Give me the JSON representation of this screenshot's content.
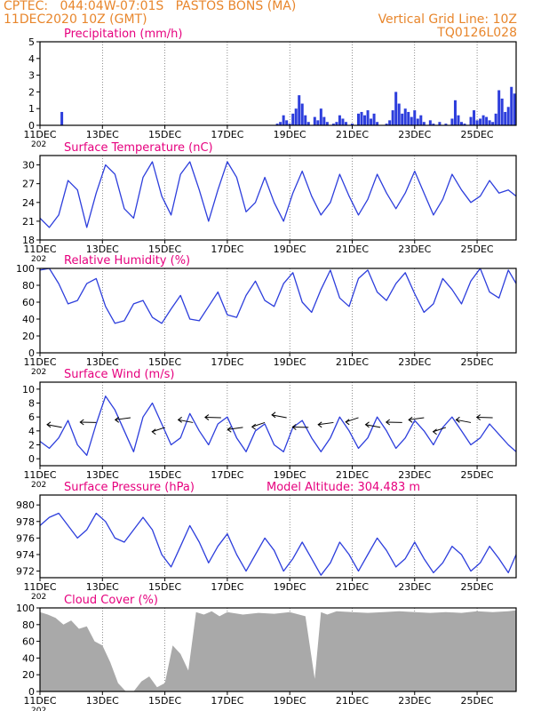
{
  "header": {
    "line1_left": "CPTEC:   044:04W-07:01S   PASTOS BONS (MA)",
    "line2_left": "11DEC2020 10Z (GMT)",
    "line1_right": "Vertical Grid Line: 10Z",
    "line2_right": "TQ0126L028"
  },
  "colors": {
    "header": "#e8862c",
    "title": "#e6007e",
    "series": "#2d3edc",
    "cloud": "#a9a9a9"
  },
  "x_axis": {
    "tick_labels": [
      "11DEC",
      "13DEC",
      "15DEC",
      "17DEC",
      "19DEC",
      "21DEC",
      "23DEC",
      "25DEC"
    ],
    "tick_days": [
      0,
      2,
      4,
      6,
      8,
      10,
      12,
      14
    ],
    "range_days": [
      0,
      15.25
    ],
    "truncated_label": "202"
  },
  "chart_data": [
    {
      "id": "precipitation",
      "type": "bar",
      "title": "Precipitation (mm/h)",
      "ylim": [
        0,
        5
      ],
      "yticks": [
        0,
        1,
        2,
        3,
        4,
        5
      ],
      "bars": [
        [
          0.7,
          0.8
        ],
        [
          7.6,
          0.1
        ],
        [
          7.7,
          0.2
        ],
        [
          7.8,
          0.6
        ],
        [
          7.9,
          0.3
        ],
        [
          8.0,
          0.1
        ],
        [
          8.1,
          0.7
        ],
        [
          8.2,
          1.0
        ],
        [
          8.3,
          1.8
        ],
        [
          8.4,
          1.3
        ],
        [
          8.5,
          0.6
        ],
        [
          8.6,
          0.2
        ],
        [
          8.8,
          0.5
        ],
        [
          8.9,
          0.3
        ],
        [
          9.0,
          1.0
        ],
        [
          9.1,
          0.5
        ],
        [
          9.2,
          0.2
        ],
        [
          9.4,
          0.1
        ],
        [
          9.5,
          0.2
        ],
        [
          9.6,
          0.6
        ],
        [
          9.7,
          0.4
        ],
        [
          9.8,
          0.2
        ],
        [
          10.0,
          0.1
        ],
        [
          10.2,
          0.7
        ],
        [
          10.3,
          0.8
        ],
        [
          10.4,
          0.6
        ],
        [
          10.5,
          0.9
        ],
        [
          10.6,
          0.4
        ],
        [
          10.7,
          0.7
        ],
        [
          10.8,
          0.2
        ],
        [
          11.1,
          0.1
        ],
        [
          11.2,
          0.3
        ],
        [
          11.3,
          0.9
        ],
        [
          11.4,
          2.0
        ],
        [
          11.5,
          1.3
        ],
        [
          11.6,
          0.7
        ],
        [
          11.7,
          1.0
        ],
        [
          11.8,
          0.8
        ],
        [
          11.9,
          0.5
        ],
        [
          12.0,
          0.9
        ],
        [
          12.1,
          0.4
        ],
        [
          12.2,
          0.6
        ],
        [
          12.3,
          0.2
        ],
        [
          12.5,
          0.3
        ],
        [
          12.6,
          0.1
        ],
        [
          12.8,
          0.2
        ],
        [
          13.0,
          0.1
        ],
        [
          13.2,
          0.4
        ],
        [
          13.3,
          1.5
        ],
        [
          13.4,
          0.6
        ],
        [
          13.5,
          0.2
        ],
        [
          13.6,
          0.1
        ],
        [
          13.8,
          0.5
        ],
        [
          13.9,
          0.9
        ],
        [
          14.0,
          0.3
        ],
        [
          14.1,
          0.4
        ],
        [
          14.2,
          0.6
        ],
        [
          14.3,
          0.5
        ],
        [
          14.4,
          0.3
        ],
        [
          14.5,
          0.2
        ],
        [
          14.6,
          0.7
        ],
        [
          14.7,
          2.1
        ],
        [
          14.8,
          1.6
        ],
        [
          14.9,
          0.8
        ],
        [
          15.0,
          1.1
        ],
        [
          15.1,
          2.3
        ],
        [
          15.2,
          1.9
        ]
      ]
    },
    {
      "id": "temperature",
      "type": "line",
      "title": "Surface Temperature (nC)",
      "ylim": [
        18,
        31.5
      ],
      "yticks": [
        18,
        21,
        24,
        27,
        30
      ],
      "x": [
        0,
        0.3,
        0.6,
        0.9,
        1.2,
        1.5,
        1.8,
        2.1,
        2.4,
        2.7,
        3.0,
        3.3,
        3.6,
        3.9,
        4.2,
        4.5,
        4.8,
        5.1,
        5.4,
        5.7,
        6.0,
        6.3,
        6.6,
        6.9,
        7.2,
        7.5,
        7.8,
        8.1,
        8.4,
        8.7,
        9.0,
        9.3,
        9.6,
        9.9,
        10.2,
        10.5,
        10.8,
        11.1,
        11.4,
        11.7,
        12.0,
        12.3,
        12.6,
        12.9,
        13.2,
        13.5,
        13.8,
        14.1,
        14.4,
        14.7,
        15.0,
        15.25
      ],
      "values": [
        21.5,
        20,
        22,
        27.5,
        26,
        20,
        25.5,
        30,
        28.5,
        23,
        21.5,
        28,
        30.5,
        25,
        22,
        28.5,
        30.5,
        26,
        21,
        26,
        30.5,
        28,
        22.5,
        24,
        28,
        24,
        21,
        25.5,
        29,
        25,
        22,
        24,
        28.5,
        25,
        22,
        24.5,
        28.5,
        25.5,
        23,
        25.5,
        29,
        25.5,
        22,
        24.5,
        28.5,
        26,
        24,
        25,
        27.5,
        25.5,
        26,
        25
      ]
    },
    {
      "id": "humidity",
      "type": "line",
      "title": "Relative Humidity (%)",
      "ylim": [
        0,
        100
      ],
      "yticks": [
        0,
        20,
        40,
        60,
        80,
        100
      ],
      "x": [
        0,
        0.3,
        0.6,
        0.9,
        1.2,
        1.5,
        1.8,
        2.1,
        2.4,
        2.7,
        3.0,
        3.3,
        3.6,
        3.9,
        4.2,
        4.5,
        4.8,
        5.1,
        5.4,
        5.7,
        6.0,
        6.3,
        6.6,
        6.9,
        7.2,
        7.5,
        7.8,
        8.1,
        8.4,
        8.7,
        9.0,
        9.3,
        9.6,
        9.9,
        10.2,
        10.5,
        10.8,
        11.1,
        11.4,
        11.7,
        12.0,
        12.3,
        12.6,
        12.9,
        13.2,
        13.5,
        13.8,
        14.1,
        14.4,
        14.7,
        15.0,
        15.25
      ],
      "values": [
        98,
        100,
        82,
        58,
        62,
        82,
        88,
        55,
        35,
        38,
        58,
        62,
        42,
        35,
        52,
        68,
        40,
        38,
        55,
        72,
        45,
        42,
        68,
        85,
        62,
        55,
        82,
        95,
        60,
        48,
        75,
        98,
        65,
        55,
        88,
        98,
        72,
        62,
        82,
        95,
        70,
        48,
        58,
        88,
        75,
        58,
        85,
        100,
        72,
        65,
        98,
        82
      ]
    },
    {
      "id": "wind",
      "type": "line",
      "title": "Surface Wind (m/s)",
      "ylim": [
        -1,
        11
      ],
      "yticks": [
        0,
        2,
        4,
        6,
        8,
        10
      ],
      "x": [
        0,
        0.3,
        0.6,
        0.9,
        1.2,
        1.5,
        1.8,
        2.1,
        2.4,
        2.7,
        3.0,
        3.3,
        3.6,
        3.9,
        4.2,
        4.5,
        4.8,
        5.1,
        5.4,
        5.7,
        6.0,
        6.3,
        6.6,
        6.9,
        7.2,
        7.5,
        7.8,
        8.1,
        8.4,
        8.7,
        9.0,
        9.3,
        9.6,
        9.9,
        10.2,
        10.5,
        10.8,
        11.1,
        11.4,
        11.7,
        12.0,
        12.3,
        12.6,
        12.9,
        13.2,
        13.5,
        13.8,
        14.1,
        14.4,
        14.7,
        15.0,
        15.25
      ],
      "values": [
        2.5,
        1.5,
        3,
        5.5,
        2,
        0.5,
        5,
        9,
        7,
        4,
        1,
        6,
        8,
        5,
        2,
        3,
        6.5,
        4,
        2,
        5,
        6,
        3,
        1,
        4,
        5,
        2,
        1,
        4.5,
        5.5,
        3,
        1,
        3,
        6,
        4,
        1.5,
        3,
        6,
        4,
        1.5,
        3,
        5.5,
        4,
        2,
        4.5,
        6,
        4,
        2,
        3,
        5,
        3.5,
        2,
        1
      ]
    },
    {
      "id": "pressure",
      "type": "line",
      "title": "Surface Pressure (hPa)",
      "subtitle": "Model Altitude: 304.483 m",
      "ylim": [
        971.2,
        981.2
      ],
      "yticks": [
        972,
        974,
        976,
        978,
        980
      ],
      "x": [
        0,
        0.3,
        0.6,
        0.9,
        1.2,
        1.5,
        1.8,
        2.1,
        2.4,
        2.7,
        3.0,
        3.3,
        3.6,
        3.9,
        4.2,
        4.5,
        4.8,
        5.1,
        5.4,
        5.7,
        6.0,
        6.3,
        6.6,
        6.9,
        7.2,
        7.5,
        7.8,
        8.1,
        8.4,
        8.7,
        9.0,
        9.3,
        9.6,
        9.9,
        10.2,
        10.5,
        10.8,
        11.1,
        11.4,
        11.7,
        12.0,
        12.3,
        12.6,
        12.9,
        13.2,
        13.5,
        13.8,
        14.1,
        14.4,
        14.7,
        15.0,
        15.25
      ],
      "values": [
        977.5,
        978.5,
        979,
        977.5,
        976,
        977,
        979,
        978,
        976,
        975.5,
        977,
        978.5,
        977,
        974,
        972.5,
        975,
        977.5,
        975.5,
        973,
        975,
        976.5,
        974,
        972,
        974,
        976,
        974.5,
        972,
        973.5,
        975.5,
        973.5,
        971.5,
        973,
        975.5,
        974,
        972,
        974,
        976,
        974.5,
        972.5,
        973.5,
        975.5,
        973.5,
        971.8,
        973,
        975,
        974,
        972,
        973,
        975,
        973.5,
        971.8,
        974
      ]
    },
    {
      "id": "cloud_cover",
      "type": "area",
      "title": "Cloud Cover (%)",
      "ylim": [
        0,
        100
      ],
      "yticks": [
        0,
        20,
        40,
        60,
        80,
        100
      ],
      "x": [
        0,
        0.25,
        0.5,
        0.75,
        1.0,
        1.25,
        1.5,
        1.75,
        2.0,
        2.25,
        2.5,
        2.75,
        3.0,
        3.25,
        3.5,
        3.75,
        4.0,
        4.25,
        4.5,
        4.75,
        5.0,
        5.25,
        5.5,
        5.75,
        6.0,
        6.5,
        7.0,
        7.5,
        8.0,
        8.5,
        8.8,
        9.0,
        9.2,
        9.5,
        10.0,
        10.5,
        11.0,
        11.5,
        12.0,
        12.5,
        13.0,
        13.5,
        14.0,
        14.5,
        15.0,
        15.25
      ],
      "values": [
        95,
        92,
        88,
        80,
        85,
        75,
        78,
        60,
        55,
        35,
        10,
        0,
        0,
        12,
        18,
        5,
        10,
        55,
        45,
        25,
        95,
        92,
        96,
        90,
        95,
        92,
        94,
        93,
        95,
        90,
        15,
        95,
        92,
        96,
        95,
        94,
        95,
        96,
        95,
        94,
        95,
        94,
        96,
        95,
        96,
        97
      ]
    }
  ]
}
